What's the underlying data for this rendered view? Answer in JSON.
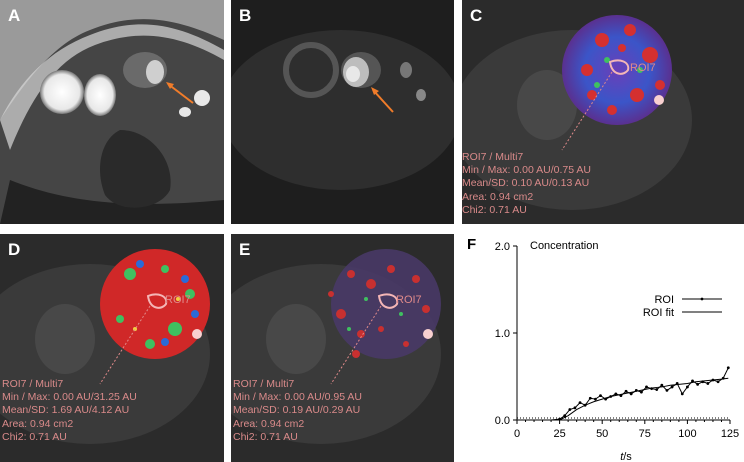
{
  "panels": [
    {
      "letter": "A"
    },
    {
      "letter": "B"
    },
    {
      "letter": "C",
      "roi": "ROI7",
      "stats": [
        "ROI7 / Multi7",
        "Min / Max: 0.00 AU/0.75 AU",
        "Mean/SD: 0.10 AU/0.13 AU",
        "Area: 0.94 cm2",
        "Chi2: 0.71 AU"
      ]
    },
    {
      "letter": "D",
      "roi": "ROI7",
      "stats": [
        "ROI7 / Multi7",
        "Min / Max: 0.00 AU/31.25 AU",
        "Mean/SD: 1.69 AU/4.12 AU",
        "Area: 0.94 cm2",
        "Chi2: 0.71 AU"
      ]
    },
    {
      "letter": "E",
      "roi": "ROI7",
      "stats": [
        "ROI7 / Multi7",
        "Min / Max: 0.00 AU/0.95 AU",
        "Mean/SD: 0.19 AU/0.29 AU",
        "Area: 0.94 cm2",
        "Chi2: 0.71 AU"
      ]
    },
    {
      "letter": "F"
    }
  ],
  "colors": {
    "arrow": "#f07c2a",
    "roi_outline": "#f4b6b6",
    "stats_text": "#d98a8a"
  },
  "chart_data": {
    "type": "line",
    "title": "Concentration",
    "xlabel_italic": "t",
    "xlabel_unit": "/s",
    "xticks": [
      "0",
      "25",
      "50",
      "75",
      "100",
      "125"
    ],
    "yticks": [
      "0.0",
      "1.0",
      "2.0"
    ],
    "xlim": [
      0,
      125
    ],
    "ylim": [
      0,
      2.0
    ],
    "baseline_dotted": true,
    "series": [
      {
        "name": "ROI",
        "style": "markers-line",
        "x": [
          0,
          5,
          10,
          15,
          20,
          25,
          28,
          31,
          34,
          37,
          40,
          43,
          46,
          49,
          52,
          55,
          58,
          61,
          64,
          67,
          70,
          73,
          76,
          79,
          82,
          85,
          88,
          91,
          94,
          97,
          100,
          103,
          106,
          109,
          112,
          115,
          118,
          121,
          124
        ],
        "y": [
          0.0,
          0.0,
          0.0,
          0.0,
          0.0,
          0.01,
          0.05,
          0.12,
          0.14,
          0.2,
          0.17,
          0.25,
          0.24,
          0.28,
          0.24,
          0.27,
          0.3,
          0.28,
          0.33,
          0.3,
          0.34,
          0.32,
          0.38,
          0.36,
          0.35,
          0.4,
          0.34,
          0.38,
          0.42,
          0.3,
          0.38,
          0.45,
          0.41,
          0.44,
          0.42,
          0.46,
          0.44,
          0.48,
          0.6
        ]
      },
      {
        "name": "ROI fit",
        "style": "line",
        "x": [
          0,
          5,
          10,
          15,
          20,
          25,
          30,
          35,
          40,
          45,
          50,
          55,
          60,
          65,
          70,
          75,
          80,
          85,
          90,
          95,
          100,
          105,
          110,
          115,
          120,
          124
        ],
        "y": [
          0.0,
          0.0,
          0.0,
          0.0,
          0.0,
          0.0,
          0.05,
          0.12,
          0.17,
          0.21,
          0.24,
          0.27,
          0.29,
          0.31,
          0.33,
          0.35,
          0.37,
          0.38,
          0.4,
          0.41,
          0.42,
          0.44,
          0.45,
          0.46,
          0.47,
          0.48
        ]
      }
    ],
    "legend_placement": "right"
  }
}
